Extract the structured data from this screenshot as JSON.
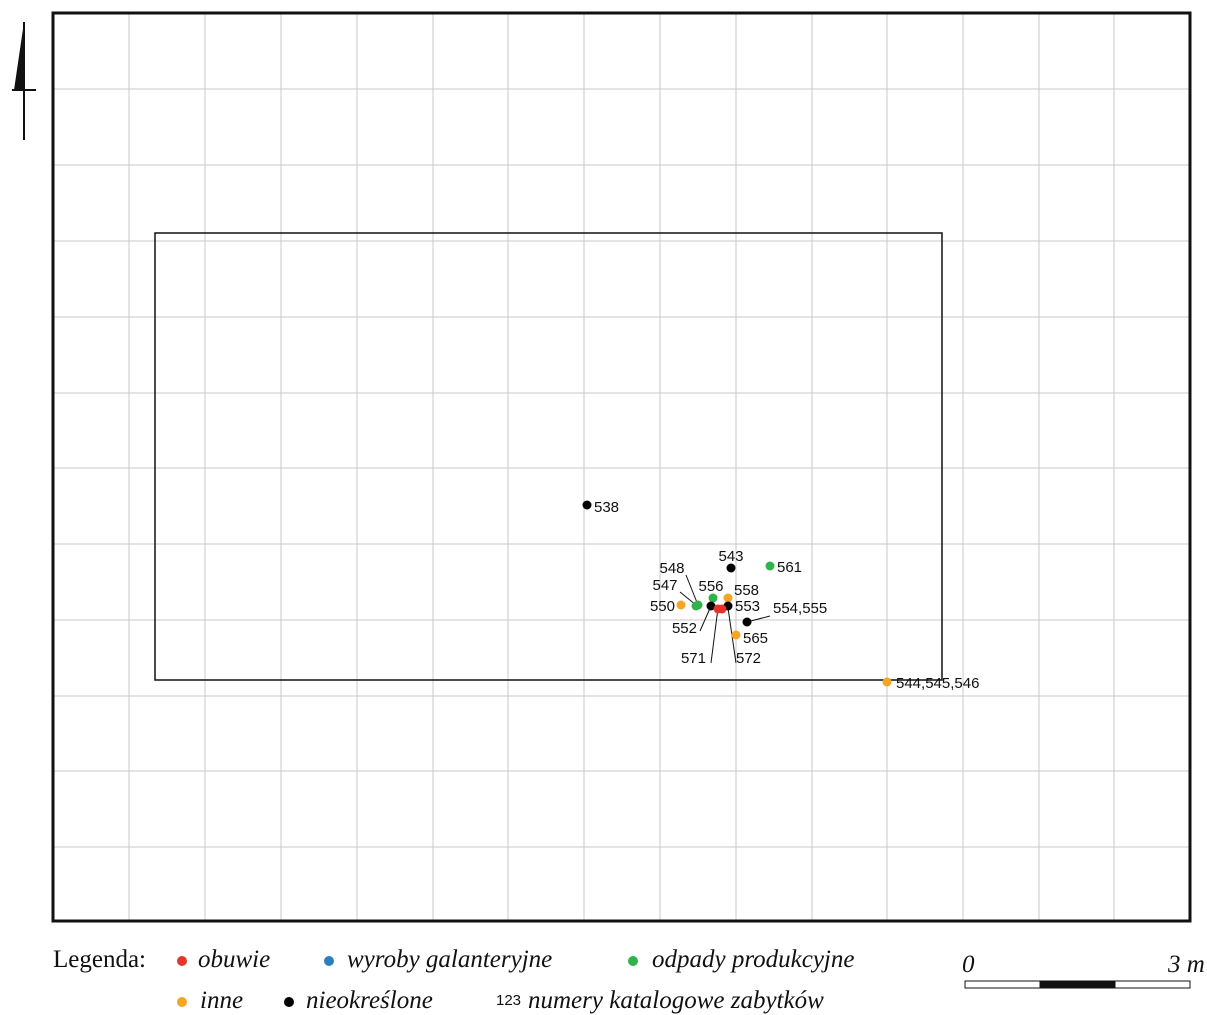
{
  "legend": {
    "title": "Legenda:",
    "entries": [
      {
        "label": "obuwie",
        "color": "#e5352b"
      },
      {
        "label": "wyroby galanteryjne",
        "color": "#2a7fc1"
      },
      {
        "label": "odpady produkcyjne",
        "color": "#2fb34a"
      },
      {
        "label": "inne",
        "color": "#f4a623"
      },
      {
        "label": "nieokreślone",
        "color": "#000000"
      }
    ],
    "catalog_sample": "123",
    "catalog_label": "numery katalogowe zabytków"
  },
  "scale": {
    "start_label": "0",
    "end_label": "3 m"
  },
  "finds": [
    {
      "label": "538",
      "category": "nieokreślone"
    },
    {
      "label": "543",
      "category": "nieokreślone"
    },
    {
      "label": "561",
      "category": "odpady produkcyjne"
    },
    {
      "label": "548",
      "category": "odpady produkcyjne"
    },
    {
      "label": "547",
      "category": "odpady produkcyjne"
    },
    {
      "label": "556",
      "category": "odpady produkcyjne"
    },
    {
      "label": "558",
      "category": "inne"
    },
    {
      "label": "550",
      "category": "inne"
    },
    {
      "label": "553",
      "category": "nieokreślone"
    },
    {
      "label": "554,555",
      "category": "nieokreślone"
    },
    {
      "label": "552",
      "category": "nieokreślone"
    },
    {
      "label": "565",
      "category": "inne"
    },
    {
      "label": "571",
      "category": "obuwie"
    },
    {
      "label": "572",
      "category": "obuwie"
    },
    {
      "label": "544,545,546",
      "category": "inne"
    }
  ]
}
